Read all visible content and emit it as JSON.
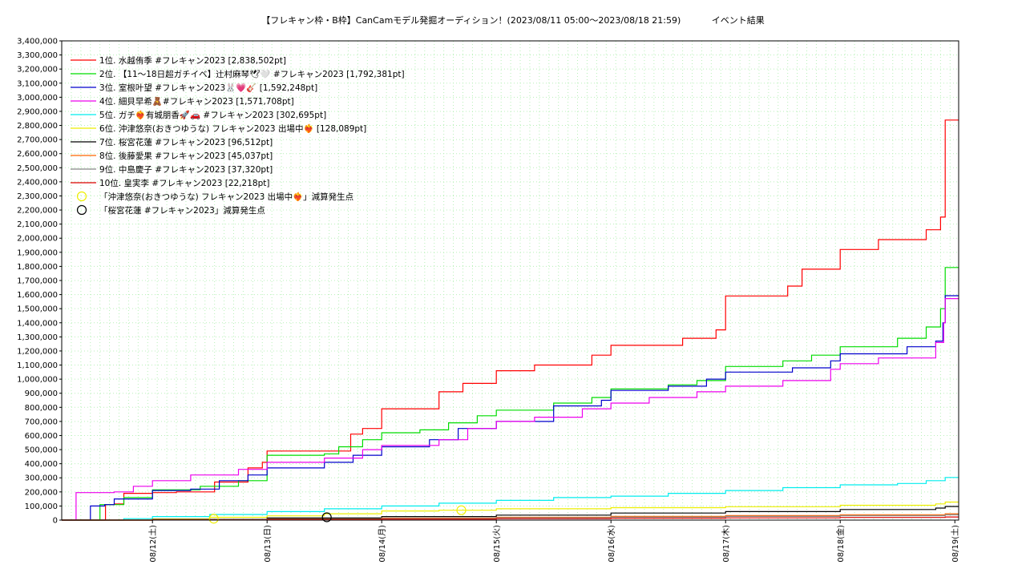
{
  "chart_data": {
    "type": "line",
    "title": "【フレキャン枠・B枠】CanCamモデル発掘オーディション！(2023/08/11 05:00〜2023/08/18 21:59)           イベント結果",
    "xlabel": "",
    "ylabel": "",
    "x_range": [
      "2023/08/11 05:00",
      "2023/08/19 00:48"
    ],
    "ylim": [
      0,
      3400000
    ],
    "y_ticks": [
      0,
      100000,
      200000,
      300000,
      400000,
      500000,
      600000,
      700000,
      800000,
      900000,
      1000000,
      1100000,
      1200000,
      1300000,
      1400000,
      1500000,
      1600000,
      1700000,
      1800000,
      1900000,
      2000000,
      2100000,
      2200000,
      2300000,
      2400000,
      2500000,
      2600000,
      2700000,
      2800000,
      2900000,
      3000000,
      3100000,
      3200000,
      3300000,
      3400000
    ],
    "y_tick_labels": [
      "0",
      "100,000",
      "200,000",
      "300,000",
      "400,000",
      "500,000",
      "600,000",
      "700,000",
      "800,000",
      "900,000",
      "1,000,000",
      "1,100,000",
      "1,200,000",
      "1,300,000",
      "1,400,000",
      "1,500,000",
      "1,600,000",
      "1,700,000",
      "1,800,000",
      "1,900,000",
      "2,000,000",
      "2,100,000",
      "2,200,000",
      "2,300,000",
      "2,400,000",
      "2,500,000",
      "2,600,000",
      "2,700,000",
      "2,800,000",
      "2,900,000",
      "3,000,000",
      "3,100,000",
      "3,200,000",
      "3,300,000",
      "3,400,000"
    ],
    "x_ticks": [
      "2023/08/12 00:00",
      "2023/08/13 00:00",
      "2023/08/14 00:00",
      "2023/08/15 00:00",
      "2023/08/16 00:00",
      "2023/08/17 00:00",
      "2023/08/18 00:00",
      "2023/08/19 00:00"
    ],
    "x_tick_labels": [
      "08/12(土)",
      "08/13(日)",
      "08/14(月)",
      "08/15(火)",
      "08/16(水)",
      "08/17(木)",
      "08/18(金)",
      "08/19(土)"
    ],
    "grid": true,
    "legend_position": "top-left",
    "series": [
      {
        "name": "1位. 水越侑季 #フレキャン2023 [2,838,502pt]",
        "color": "#ff0000",
        "points": [
          [
            "2023/08/11 05:00",
            0
          ],
          [
            "2023/08/11 13:00",
            0
          ],
          [
            "2023/08/11 14:10",
            110000
          ],
          [
            "2023/08/11 16:00",
            115000
          ],
          [
            "2023/08/11 18:00",
            190000
          ],
          [
            "2023/08/11 23:00",
            190000
          ],
          [
            "2023/08/12 00:00",
            195000
          ],
          [
            "2023/08/12 05:00",
            200000
          ],
          [
            "2023/08/12 13:00",
            270000
          ],
          [
            "2023/08/12 20:00",
            370000
          ],
          [
            "2023/08/12 23:00",
            410000
          ],
          [
            "2023/08/13 00:00",
            490000
          ],
          [
            "2023/08/13 06:00",
            490000
          ],
          [
            "2023/08/13 15:00",
            490000
          ],
          [
            "2023/08/13 17:30",
            610000
          ],
          [
            "2023/08/13 20:00",
            650000
          ],
          [
            "2023/08/14 00:00",
            790000
          ],
          [
            "2023/08/14 06:00",
            790000
          ],
          [
            "2023/08/14 12:00",
            910000
          ],
          [
            "2023/08/14 17:00",
            970000
          ],
          [
            "2023/08/15 00:00",
            1060000
          ],
          [
            "2023/08/15 08:00",
            1100000
          ],
          [
            "2023/08/15 20:00",
            1170000
          ],
          [
            "2023/08/16 00:00",
            1240000
          ],
          [
            "2023/08/16 10:00",
            1240000
          ],
          [
            "2023/08/16 15:00",
            1290000
          ],
          [
            "2023/08/16 22:00",
            1350000
          ],
          [
            "2023/08/17 00:00",
            1590000
          ],
          [
            "2023/08/17 10:00",
            1590000
          ],
          [
            "2023/08/17 13:00",
            1660000
          ],
          [
            "2023/08/17 16:00",
            1780000
          ],
          [
            "2023/08/17 23:50",
            1780000
          ],
          [
            "2023/08/18 00:00",
            1920000
          ],
          [
            "2023/08/18 08:00",
            1990000
          ],
          [
            "2023/08/18 18:00",
            2060000
          ],
          [
            "2023/08/18 21:00",
            2150000
          ],
          [
            "2023/08/18 21:59",
            2838502
          ],
          [
            "2023/08/19 00:48",
            2838502
          ]
        ]
      },
      {
        "name": "2位. 【11〜18日超ガチイベ】辻村麻琴🕊🤍 #フレキャン2023 [1,792,381pt]",
        "color": "#00dd00",
        "points": [
          [
            "2023/08/11 05:00",
            0
          ],
          [
            "2023/08/11 12:00",
            0
          ],
          [
            "2023/08/11 13:00",
            110000
          ],
          [
            "2023/08/11 18:00",
            160000
          ],
          [
            "2023/08/12 00:00",
            215000
          ],
          [
            "2023/08/12 10:00",
            240000
          ],
          [
            "2023/08/12 18:00",
            280000
          ],
          [
            "2023/08/13 00:00",
            460000
          ],
          [
            "2023/08/13 12:00",
            470000
          ],
          [
            "2023/08/13 15:00",
            520000
          ],
          [
            "2023/08/13 20:00",
            570000
          ],
          [
            "2023/08/14 00:00",
            620000
          ],
          [
            "2023/08/14 08:00",
            640000
          ],
          [
            "2023/08/14 14:00",
            690000
          ],
          [
            "2023/08/14 20:00",
            740000
          ],
          [
            "2023/08/15 00:00",
            780000
          ],
          [
            "2023/08/15 12:00",
            830000
          ],
          [
            "2023/08/15 20:00",
            870000
          ],
          [
            "2023/08/16 00:00",
            930000
          ],
          [
            "2023/08/16 12:00",
            960000
          ],
          [
            "2023/08/16 18:00",
            990000
          ],
          [
            "2023/08/17 00:00",
            1090000
          ],
          [
            "2023/08/17 12:00",
            1130000
          ],
          [
            "2023/08/17 18:00",
            1170000
          ],
          [
            "2023/08/18 00:00",
            1230000
          ],
          [
            "2023/08/18 12:00",
            1290000
          ],
          [
            "2023/08/18 18:00",
            1370000
          ],
          [
            "2023/08/18 21:00",
            1500000
          ],
          [
            "2023/08/18 21:59",
            1792381
          ],
          [
            "2023/08/19 00:48",
            1792381
          ]
        ]
      },
      {
        "name": "3位. 室根叶望 #フレキャン2023🐰💗🎸 [1,592,248pt]",
        "color": "#0000cc",
        "points": [
          [
            "2023/08/11 05:00",
            0
          ],
          [
            "2023/08/11 10:00",
            0
          ],
          [
            "2023/08/11 11:00",
            100000
          ],
          [
            "2023/08/11 14:00",
            110000
          ],
          [
            "2023/08/11 16:00",
            150000
          ],
          [
            "2023/08/12 00:00",
            210000
          ],
          [
            "2023/08/12 08:00",
            220000
          ],
          [
            "2023/08/12 14:00",
            280000
          ],
          [
            "2023/08/12 20:00",
            320000
          ],
          [
            "2023/08/13 00:00",
            370000
          ],
          [
            "2023/08/13 12:00",
            410000
          ],
          [
            "2023/08/13 18:00",
            460000
          ],
          [
            "2023/08/14 00:00",
            520000
          ],
          [
            "2023/08/14 10:00",
            570000
          ],
          [
            "2023/08/14 16:00",
            650000
          ],
          [
            "2023/08/15 00:00",
            700000
          ],
          [
            "2023/08/15 12:00",
            810000
          ],
          [
            "2023/08/15 22:00",
            850000
          ],
          [
            "2023/08/16 00:00",
            920000
          ],
          [
            "2023/08/16 12:00",
            950000
          ],
          [
            "2023/08/16 20:00",
            1000000
          ],
          [
            "2023/08/17 00:00",
            1050000
          ],
          [
            "2023/08/17 14:00",
            1080000
          ],
          [
            "2023/08/17 22:00",
            1130000
          ],
          [
            "2023/08/18 00:00",
            1180000
          ],
          [
            "2023/08/18 14:00",
            1230000
          ],
          [
            "2023/08/18 20:00",
            1270000
          ],
          [
            "2023/08/18 21:30",
            1400000
          ],
          [
            "2023/08/18 21:59",
            1592248
          ],
          [
            "2023/08/19 00:48",
            1592248
          ]
        ]
      },
      {
        "name": "4位. 細貝早希🧸#フレキャン2023 [1,571,708pt]",
        "color": "#ee00ee",
        "points": [
          [
            "2023/08/11 05:00",
            0
          ],
          [
            "2023/08/11 07:30",
            0
          ],
          [
            "2023/08/11 08:00",
            195000
          ],
          [
            "2023/08/11 16:00",
            200000
          ],
          [
            "2023/08/11 20:00",
            240000
          ],
          [
            "2023/08/12 00:00",
            280000
          ],
          [
            "2023/08/12 08:00",
            320000
          ],
          [
            "2023/08/12 18:00",
            360000
          ],
          [
            "2023/08/13 00:00",
            410000
          ],
          [
            "2023/08/13 12:00",
            440000
          ],
          [
            "2023/08/13 20:00",
            500000
          ],
          [
            "2023/08/14 00:00",
            530000
          ],
          [
            "2023/08/14 12:00",
            570000
          ],
          [
            "2023/08/14 18:00",
            650000
          ],
          [
            "2023/08/15 00:00",
            700000
          ],
          [
            "2023/08/15 08:00",
            730000
          ],
          [
            "2023/08/15 18:00",
            790000
          ],
          [
            "2023/08/16 00:00",
            830000
          ],
          [
            "2023/08/16 08:00",
            870000
          ],
          [
            "2023/08/16 18:00",
            910000
          ],
          [
            "2023/08/17 00:00",
            950000
          ],
          [
            "2023/08/17 12:00",
            990000
          ],
          [
            "2023/08/17 22:00",
            1070000
          ],
          [
            "2023/08/18 00:00",
            1110000
          ],
          [
            "2023/08/18 08:00",
            1150000
          ],
          [
            "2023/08/18 20:00",
            1260000
          ],
          [
            "2023/08/18 21:40",
            1400000
          ],
          [
            "2023/08/18 21:59",
            1571708
          ],
          [
            "2023/08/19 00:48",
            1571708
          ]
        ]
      },
      {
        "name": "5位. ガチ❤️‍🔥有城朋香🚀🚗 #フレキャン2023 [302,695pt]",
        "color": "#00eeee",
        "points": [
          [
            "2023/08/11 05:00",
            0
          ],
          [
            "2023/08/11 18:00",
            10000
          ],
          [
            "2023/08/12 00:00",
            25000
          ],
          [
            "2023/08/12 12:00",
            40000
          ],
          [
            "2023/08/13 00:00",
            60000
          ],
          [
            "2023/08/13 12:00",
            80000
          ],
          [
            "2023/08/14 00:00",
            100000
          ],
          [
            "2023/08/14 12:00",
            120000
          ],
          [
            "2023/08/15 00:00",
            140000
          ],
          [
            "2023/08/15 12:00",
            160000
          ],
          [
            "2023/08/16 00:00",
            170000
          ],
          [
            "2023/08/16 12:00",
            190000
          ],
          [
            "2023/08/17 00:00",
            210000
          ],
          [
            "2023/08/17 12:00",
            230000
          ],
          [
            "2023/08/18 00:00",
            250000
          ],
          [
            "2023/08/18 12:00",
            260000
          ],
          [
            "2023/08/18 18:00",
            280000
          ],
          [
            "2023/08/18 21:59",
            302695
          ],
          [
            "2023/08/19 00:48",
            302695
          ]
        ]
      },
      {
        "name": "6位. 沖津悠奈(おきつゆうな) フレキャン2023 出場中❤️‍🔥 [128,089pt]",
        "color": "#eeee00",
        "points": [
          [
            "2023/08/11 05:00",
            0
          ],
          [
            "2023/08/12 00:00",
            8000
          ],
          [
            "2023/08/12 12:00",
            20000
          ],
          [
            "2023/08/13 00:00",
            30000
          ],
          [
            "2023/08/13 12:00",
            45000
          ],
          [
            "2023/08/14 00:00",
            65000
          ],
          [
            "2023/08/14 12:00",
            70000
          ],
          [
            "2023/08/15 00:00",
            80000
          ],
          [
            "2023/08/16 00:00",
            88000
          ],
          [
            "2023/08/17 00:00",
            95000
          ],
          [
            "2023/08/18 00:00",
            105000
          ],
          [
            "2023/08/18 20:00",
            115000
          ],
          [
            "2023/08/18 21:59",
            128089
          ],
          [
            "2023/08/19 00:48",
            128089
          ]
        ]
      },
      {
        "name": "7位. 桜宮花蓮 #フレキャン2023 [96,512pt]",
        "color": "#000000",
        "points": [
          [
            "2023/08/11 05:00",
            0
          ],
          [
            "2023/08/12 00:00",
            5000
          ],
          [
            "2023/08/13 00:00",
            15000
          ],
          [
            "2023/08/14 00:00",
            25000
          ],
          [
            "2023/08/15 00:00",
            35000
          ],
          [
            "2023/08/16 00:00",
            50000
          ],
          [
            "2023/08/17 00:00",
            60000
          ],
          [
            "2023/08/18 00:00",
            75000
          ],
          [
            "2023/08/18 20:00",
            85000
          ],
          [
            "2023/08/18 21:59",
            96512
          ],
          [
            "2023/08/19 00:48",
            96512
          ]
        ]
      },
      {
        "name": "8位. 後藤愛果 #フレキャン2023 [45,037pt]",
        "color": "#ff6600",
        "points": [
          [
            "2023/08/11 05:00",
            0
          ],
          [
            "2023/08/12 00:00",
            3000
          ],
          [
            "2023/08/13 00:00",
            8000
          ],
          [
            "2023/08/14 00:00",
            14000
          ],
          [
            "2023/08/15 00:00",
            20000
          ],
          [
            "2023/08/16 00:00",
            26000
          ],
          [
            "2023/08/17 00:00",
            32000
          ],
          [
            "2023/08/18 00:00",
            38000
          ],
          [
            "2023/08/18 21:59",
            45037
          ],
          [
            "2023/08/19 00:48",
            45037
          ]
        ]
      },
      {
        "name": "9位. 中島慶子 #フレキャン2023 [37,320pt]",
        "color": "#888888",
        "points": [
          [
            "2023/08/11 05:00",
            0
          ],
          [
            "2023/08/12 00:00",
            2000
          ],
          [
            "2023/08/13 00:00",
            6000
          ],
          [
            "2023/08/14 00:00",
            11000
          ],
          [
            "2023/08/15 00:00",
            16000
          ],
          [
            "2023/08/16 00:00",
            21000
          ],
          [
            "2023/08/17 00:00",
            26000
          ],
          [
            "2023/08/18 00:00",
            31000
          ],
          [
            "2023/08/18 21:59",
            37320
          ],
          [
            "2023/08/19 00:48",
            37320
          ]
        ]
      },
      {
        "name": "10位. 皇実李 #フレキャン2023 [22,218pt]",
        "color": "#dd0000",
        "points": [
          [
            "2023/08/11 05:00",
            0
          ],
          [
            "2023/08/12 00:00",
            1000
          ],
          [
            "2023/08/13 00:00",
            4000
          ],
          [
            "2023/08/14 00:00",
            7000
          ],
          [
            "2023/08/15 00:00",
            10000
          ],
          [
            "2023/08/16 00:00",
            13000
          ],
          [
            "2023/08/17 00:00",
            16000
          ],
          [
            "2023/08/18 00:00",
            19000
          ],
          [
            "2023/08/18 21:59",
            22218
          ],
          [
            "2023/08/19 00:48",
            22218
          ]
        ]
      }
    ],
    "markers": [
      {
        "name": "「沖津悠奈(おきつゆうな) フレキャン2023 出場中❤️‍🔥」減算発生点",
        "color": "#eeee00",
        "shape": "circle",
        "points": [
          [
            "2023/08/12 12:50",
            10000
          ],
          [
            "2023/08/14 16:40",
            70000
          ]
        ]
      },
      {
        "name": "「桜宮花蓮 #フレキャン2023」減算発生点",
        "color": "#000000",
        "shape": "circle",
        "points": [
          [
            "2023/08/13 12:30",
            20000
          ]
        ]
      }
    ]
  }
}
